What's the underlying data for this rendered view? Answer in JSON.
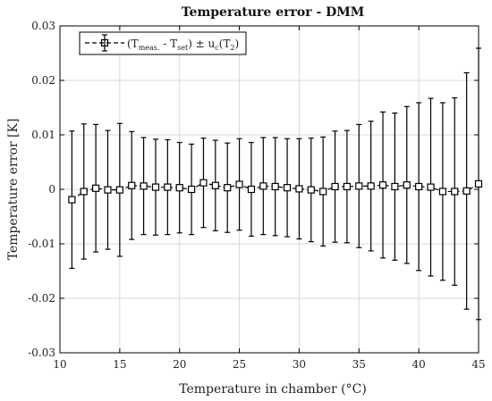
{
  "chart_data": {
    "type": "scatter",
    "title": "Temperature error - DMM",
    "xlabel": "Temperature in chamber (°C)",
    "ylabel": "Temperature error [K]",
    "xlim": [
      10,
      45
    ],
    "ylim": [
      -0.03,
      0.03
    ],
    "xticks": [
      10,
      15,
      20,
      25,
      30,
      35,
      40,
      45
    ],
    "yticks": [
      -0.03,
      -0.02,
      -0.01,
      0,
      0.01,
      0.02,
      0.03
    ],
    "xtick_labels": [
      "10",
      "15",
      "20",
      "25",
      "30",
      "35",
      "40",
      "45"
    ],
    "ytick_labels": [
      "-0.03",
      "-0.02",
      "-0.01",
      "0",
      "0.01",
      "0.02",
      "0.03"
    ],
    "grid": true,
    "legend_position": "top-left",
    "legend": {
      "prefix": "(T",
      "sub1": "meas.",
      "mid": " - T",
      "sub2": "set",
      "mid2": ") ± u",
      "sub3": "c",
      "mid3": "(T",
      "sub4": "2",
      "suffix": ")"
    },
    "series": [
      {
        "type": "errorbar",
        "marker": "square",
        "color": "#000000",
        "x": [
          11,
          12,
          13,
          14,
          15,
          16,
          17,
          18,
          19,
          20,
          21,
          22,
          23,
          24,
          25,
          26,
          27,
          28,
          29,
          30,
          31,
          32,
          33,
          34,
          35,
          36,
          37,
          38,
          39,
          40,
          41,
          42,
          43,
          44,
          45
        ],
        "y": [
          -0.0019,
          -0.0004,
          0.0002,
          -0.0001,
          -0.0001,
          0.0007,
          0.0006,
          0.0004,
          0.0004,
          0.0003,
          0.0,
          0.0012,
          0.0007,
          0.0003,
          0.0009,
          0.0,
          0.0006,
          0.0005,
          0.0003,
          0.0001,
          -0.0001,
          -0.0004,
          0.0005,
          0.0005,
          0.0006,
          0.0006,
          0.0008,
          0.0005,
          0.0008,
          0.0005,
          0.0004,
          -0.0004,
          -0.0004,
          -0.0003,
          0.001
        ],
        "err": [
          0.0126,
          0.0124,
          0.0117,
          0.0109,
          0.0122,
          0.0099,
          0.0089,
          0.0088,
          0.0087,
          0.0083,
          0.0083,
          0.0082,
          0.0083,
          0.0082,
          0.0084,
          0.0086,
          0.0089,
          0.009,
          0.009,
          0.0092,
          0.0095,
          0.01,
          0.0102,
          0.0103,
          0.0113,
          0.0119,
          0.0134,
          0.0135,
          0.0144,
          0.0154,
          0.0163,
          0.0163,
          0.0172,
          0.0217,
          0.0249
        ]
      }
    ]
  }
}
